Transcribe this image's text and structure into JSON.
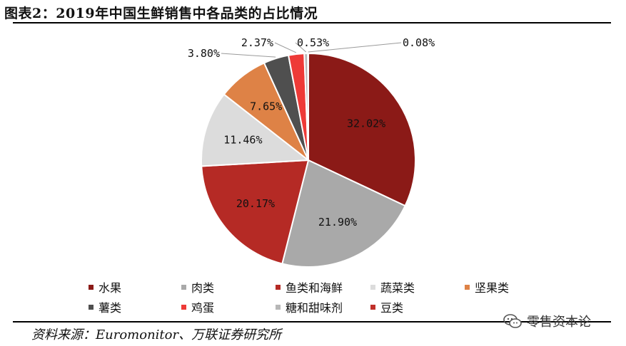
{
  "title": "图表2：2019年中国生鲜销售中各品类的占比情况",
  "source": "资料来源：Euromonitor、万联证券研究所",
  "watermark": "零售资本论",
  "chart_data": {
    "type": "pie",
    "start_angle_deg": 0,
    "direction": "clockwise",
    "legend_position": "bottom",
    "slices": [
      {
        "name": "水果",
        "value": 32.02,
        "label": "32.02%",
        "color": "#8B1A17"
      },
      {
        "name": "肉类",
        "value": 21.9,
        "label": "21.90%",
        "color": "#A9A9A9"
      },
      {
        "name": "鱼类和海鲜",
        "value": 20.17,
        "label": "20.17%",
        "color": "#B52A25"
      },
      {
        "name": "蔬菜类",
        "value": 11.46,
        "label": "11.46%",
        "color": "#DCDCDC"
      },
      {
        "name": "坚果类",
        "value": 7.65,
        "label": "7.65%",
        "color": "#DE8246"
      },
      {
        "name": "薯类",
        "value": 3.8,
        "label": "3.80%",
        "color": "#4F4F4F"
      },
      {
        "name": "鸡蛋",
        "value": 2.37,
        "label": "2.37%",
        "color": "#EE3A37"
      },
      {
        "name": "糖和甜味剂",
        "value": 0.53,
        "label": "0.53%",
        "color": "#B7B7B7"
      },
      {
        "name": "豆类",
        "value": 0.08,
        "label": "0.08%",
        "color": "#C0302A"
      }
    ]
  }
}
